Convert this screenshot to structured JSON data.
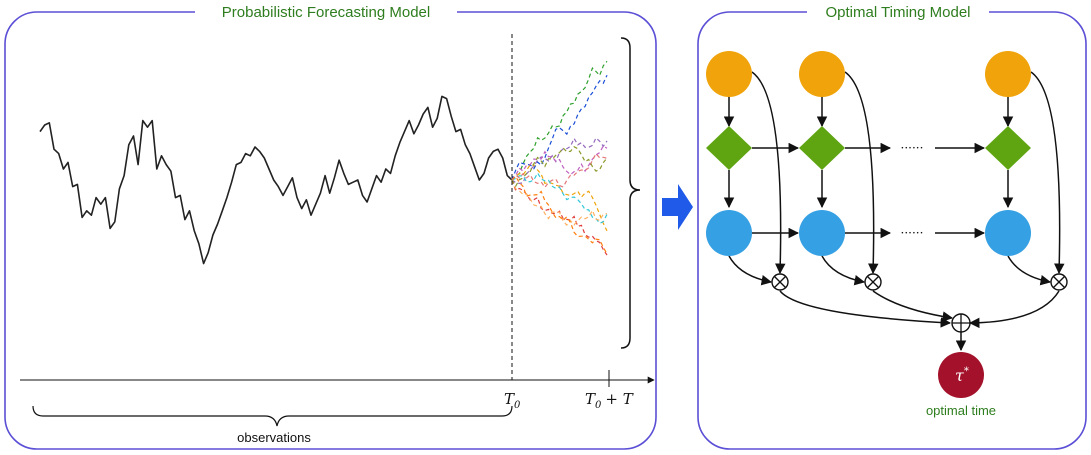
{
  "left_panel": {
    "title": "Probabilistic Forecasting Model",
    "t0_label": "T",
    "t0_sub": "0",
    "horizon_label_a": "T",
    "horizon_sub": "0",
    "horizon_label_b": "+ T",
    "observations_label": "observations"
  },
  "right_panel": {
    "title": "Optimal Timing Model",
    "optimal_time_label": "optimal time",
    "tau_symbol": "τ",
    "tau_sup": "*",
    "ellipsis": "······"
  },
  "colors": {
    "panel_border": "#5b4fd6",
    "title_green": "#2e7d1e",
    "node_orange": "#f0a30a",
    "node_green": "#5fa512",
    "node_blue": "#35a0e3",
    "node_red": "#a3122a",
    "arrow_blue": "#1f5ae8",
    "series": "#222222",
    "forecast_colors": [
      "#2ea02e",
      "#e03a3a",
      "#f0a30a",
      "#9467bd",
      "#1a4fd6",
      "#c060c0",
      "#2fc7d8",
      "#ffb060",
      "#e37777",
      "#8c9a2a",
      "#ff7f0e"
    ]
  },
  "chart_data": {
    "type": "line",
    "series": [
      {
        "values": [
          0.72,
          0.75,
          0.76,
          0.64,
          0.62,
          0.55,
          0.58,
          0.47,
          0.48,
          0.33,
          0.36,
          0.34,
          0.42,
          0.39,
          0.42,
          0.28,
          0.31,
          0.46,
          0.52,
          0.66,
          0.7,
          0.57,
          0.77,
          0.74,
          0.77,
          0.55,
          0.61,
          0.57,
          0.54,
          0.42,
          0.43,
          0.32,
          0.36,
          0.27,
          0.21,
          0.12,
          0.17,
          0.25,
          0.3,
          0.36,
          0.42,
          0.49,
          0.57,
          0.58,
          0.62,
          0.61,
          0.65,
          0.63,
          0.6,
          0.55,
          0.5,
          0.47,
          0.43,
          0.47,
          0.51,
          0.42,
          0.37,
          0.41,
          0.34,
          0.39,
          0.44,
          0.52,
          0.44,
          0.51,
          0.59,
          0.53,
          0.48,
          0.49,
          0.5,
          0.43,
          0.4,
          0.46,
          0.52,
          0.49,
          0.55,
          0.53,
          0.61,
          0.67,
          0.72,
          0.77,
          0.71,
          0.75,
          0.8,
          0.83,
          0.74,
          0.78,
          0.88,
          0.87,
          0.79,
          0.72,
          0.73,
          0.66,
          0.62,
          0.56,
          0.5,
          0.53,
          0.6,
          0.63,
          0.64,
          0.6,
          0.52,
          0.5
        ]
      }
    ],
    "forecast_paths": 11
  }
}
